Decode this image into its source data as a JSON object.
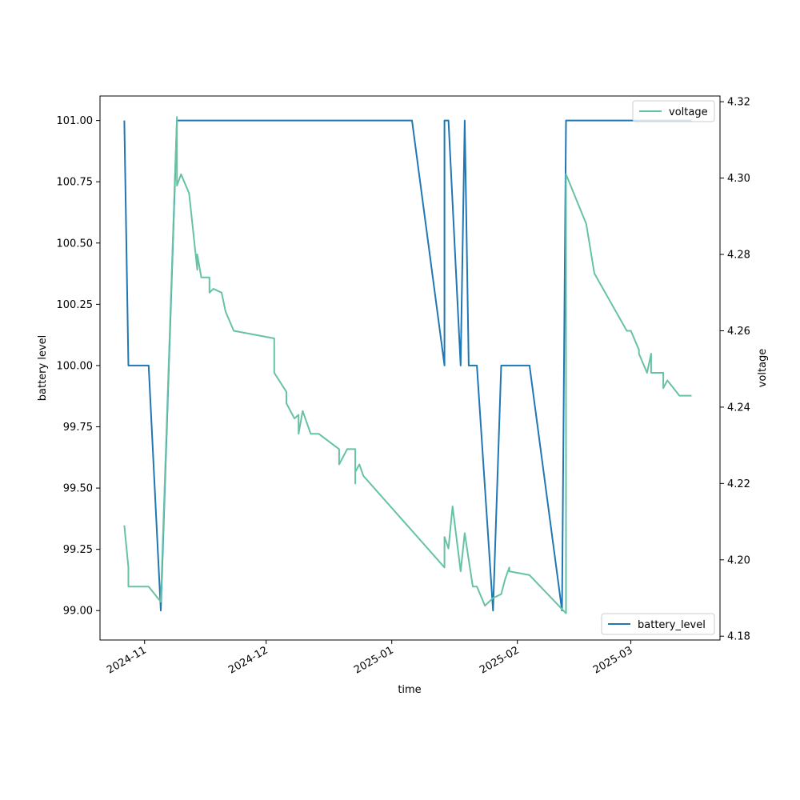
{
  "chart_data": {
    "type": "line",
    "xlabel": "time",
    "ylabel_left": "battery level",
    "ylabel_right": "voltage",
    "x_ticks": [
      "2024-11",
      "2024-12",
      "2025-01",
      "2025-02",
      "2025-03"
    ],
    "y_left_ticks": [
      "99.00",
      "99.25",
      "99.50",
      "99.75",
      "100.00",
      "100.25",
      "100.50",
      "100.75",
      "101.00"
    ],
    "y_right_ticks": [
      "4.18",
      "4.20",
      "4.22",
      "4.24",
      "4.26",
      "4.28",
      "4.30",
      "4.32"
    ],
    "xlim": [
      "2024-10-21",
      "2025-03-23"
    ],
    "ylim_left": [
      98.88,
      101.1
    ],
    "ylim_right": [
      4.179,
      4.3215
    ],
    "grid": false,
    "legends": [
      {
        "label": "voltage",
        "placement": "top-right"
      },
      {
        "label": "battery_level",
        "placement": "bottom-right"
      }
    ],
    "series": [
      {
        "name": "battery_level",
        "axis": "left",
        "color": "#1f77b4",
        "points": [
          [
            "2024-10-27",
            101.0
          ],
          [
            "2024-10-28",
            100.0
          ],
          [
            "2024-11-02",
            100.0
          ],
          [
            "2024-11-05",
            99.0
          ],
          [
            "2024-11-09",
            101.0
          ],
          [
            "2025-01-06",
            101.0
          ],
          [
            "2025-01-14",
            100.0
          ],
          [
            "2025-01-14",
            101.0
          ],
          [
            "2025-01-15",
            101.0
          ],
          [
            "2025-01-18",
            100.0
          ],
          [
            "2025-01-19",
            101.0
          ],
          [
            "2025-01-20",
            100.0
          ],
          [
            "2025-01-22",
            100.0
          ],
          [
            "2025-01-26",
            99.0
          ],
          [
            "2025-01-28",
            100.0
          ],
          [
            "2025-02-04",
            100.0
          ],
          [
            "2025-02-12",
            99.0
          ],
          [
            "2025-02-13",
            101.0
          ],
          [
            "2025-03-16",
            101.0
          ]
        ]
      },
      {
        "name": "voltage",
        "axis": "right",
        "color": "#66c2a5",
        "points": [
          [
            "2024-10-27",
            4.209
          ],
          [
            "2024-10-28",
            4.198
          ],
          [
            "2024-10-28",
            4.193
          ],
          [
            "2024-11-02",
            4.193
          ],
          [
            "2024-11-05",
            4.189
          ],
          [
            "2024-11-09",
            4.316
          ],
          [
            "2024-11-09",
            4.298
          ],
          [
            "2024-11-10",
            4.301
          ],
          [
            "2024-11-12",
            4.296
          ],
          [
            "2024-11-14",
            4.276
          ],
          [
            "2024-11-14",
            4.28
          ],
          [
            "2024-11-15",
            4.274
          ],
          [
            "2024-11-17",
            4.274
          ],
          [
            "2024-11-17",
            4.27
          ],
          [
            "2024-11-18",
            4.271
          ],
          [
            "2024-11-20",
            4.27
          ],
          [
            "2024-11-21",
            4.265
          ],
          [
            "2024-11-23",
            4.26
          ],
          [
            "2024-12-03",
            4.258
          ],
          [
            "2024-12-03",
            4.249
          ],
          [
            "2024-12-06",
            4.244
          ],
          [
            "2024-12-06",
            4.241
          ],
          [
            "2024-12-08",
            4.237
          ],
          [
            "2024-12-09",
            4.238
          ],
          [
            "2024-12-09",
            4.233
          ],
          [
            "2024-12-10",
            4.239
          ],
          [
            "2024-12-12",
            4.233
          ],
          [
            "2024-12-14",
            4.233
          ],
          [
            "2024-12-19",
            4.229
          ],
          [
            "2024-12-19",
            4.225
          ],
          [
            "2024-12-21",
            4.229
          ],
          [
            "2024-12-23",
            4.229
          ],
          [
            "2024-12-23",
            4.22
          ],
          [
            "2024-12-23",
            4.223
          ],
          [
            "2024-12-24",
            4.225
          ],
          [
            "2024-12-25",
            4.222
          ],
          [
            "2025-01-14",
            4.198
          ],
          [
            "2025-01-14",
            4.206
          ],
          [
            "2025-01-15",
            4.203
          ],
          [
            "2025-01-16",
            4.214
          ],
          [
            "2025-01-18",
            4.197
          ],
          [
            "2025-01-19",
            4.207
          ],
          [
            "2025-01-20",
            4.2
          ],
          [
            "2025-01-21",
            4.193
          ],
          [
            "2025-01-22",
            4.193
          ],
          [
            "2025-01-24",
            4.188
          ],
          [
            "2025-01-26",
            4.19
          ],
          [
            "2025-01-28",
            4.191
          ],
          [
            "2025-01-29",
            4.195
          ],
          [
            "2025-01-30",
            4.198
          ],
          [
            "2025-01-30",
            4.197
          ],
          [
            "2025-02-04",
            4.196
          ],
          [
            "2025-02-13",
            4.186
          ],
          [
            "2025-02-13",
            4.301
          ],
          [
            "2025-02-18",
            4.288
          ],
          [
            "2025-02-20",
            4.275
          ],
          [
            "2025-02-28",
            4.26
          ],
          [
            "2025-03-01",
            4.26
          ],
          [
            "2025-03-03",
            4.255
          ],
          [
            "2025-03-03",
            4.254
          ],
          [
            "2025-03-05",
            4.249
          ],
          [
            "2025-03-06",
            4.254
          ],
          [
            "2025-03-06",
            4.249
          ],
          [
            "2025-03-09",
            4.249
          ],
          [
            "2025-03-09",
            4.245
          ],
          [
            "2025-03-10",
            4.247
          ],
          [
            "2025-03-13",
            4.243
          ],
          [
            "2025-03-16",
            4.243
          ]
        ]
      }
    ]
  }
}
